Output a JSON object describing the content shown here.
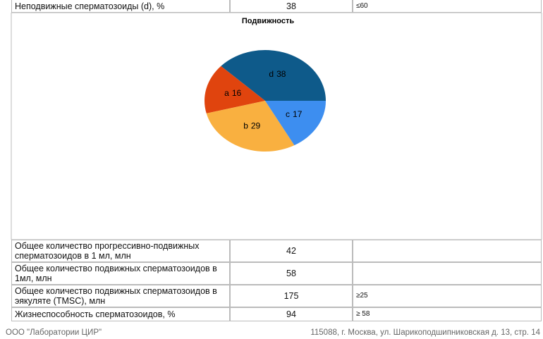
{
  "top_table": {
    "rows": [
      [
        "Неподвижные сперматозоиды (d), %",
        "38",
        "≤60"
      ]
    ]
  },
  "chart_data": {
    "type": "pie",
    "title": "Подвижность",
    "categories": [
      "d",
      "a",
      "b",
      "c"
    ],
    "values": [
      38,
      16,
      29,
      17
    ],
    "colors": [
      "#0e5a8a",
      "#e0440e",
      "#f9b040",
      "#3d8ef0"
    ]
  },
  "bottom_table": {
    "rows": [
      [
        "Общее количество прогрессивно-подвижных сперматозоидов в 1 мл, млн",
        "42"
      ],
      [
        "Общее количество подвижных сперматозоидов в 1мл, млн",
        "58"
      ],
      [
        "Общее количество подвижных сперматозоидов в эякуляте (TMSC), млн",
        "175",
        "≥25"
      ],
      [
        "Жизнеспособность сперматозоидов, %",
        "94",
        "≥ 58"
      ]
    ]
  },
  "footer": {
    "left": "ООО \"Лаборатории ЦИР\"",
    "right": "115088, г. Москва, ул. Шарикоподшипниковская д. 13, стр. 14"
  }
}
